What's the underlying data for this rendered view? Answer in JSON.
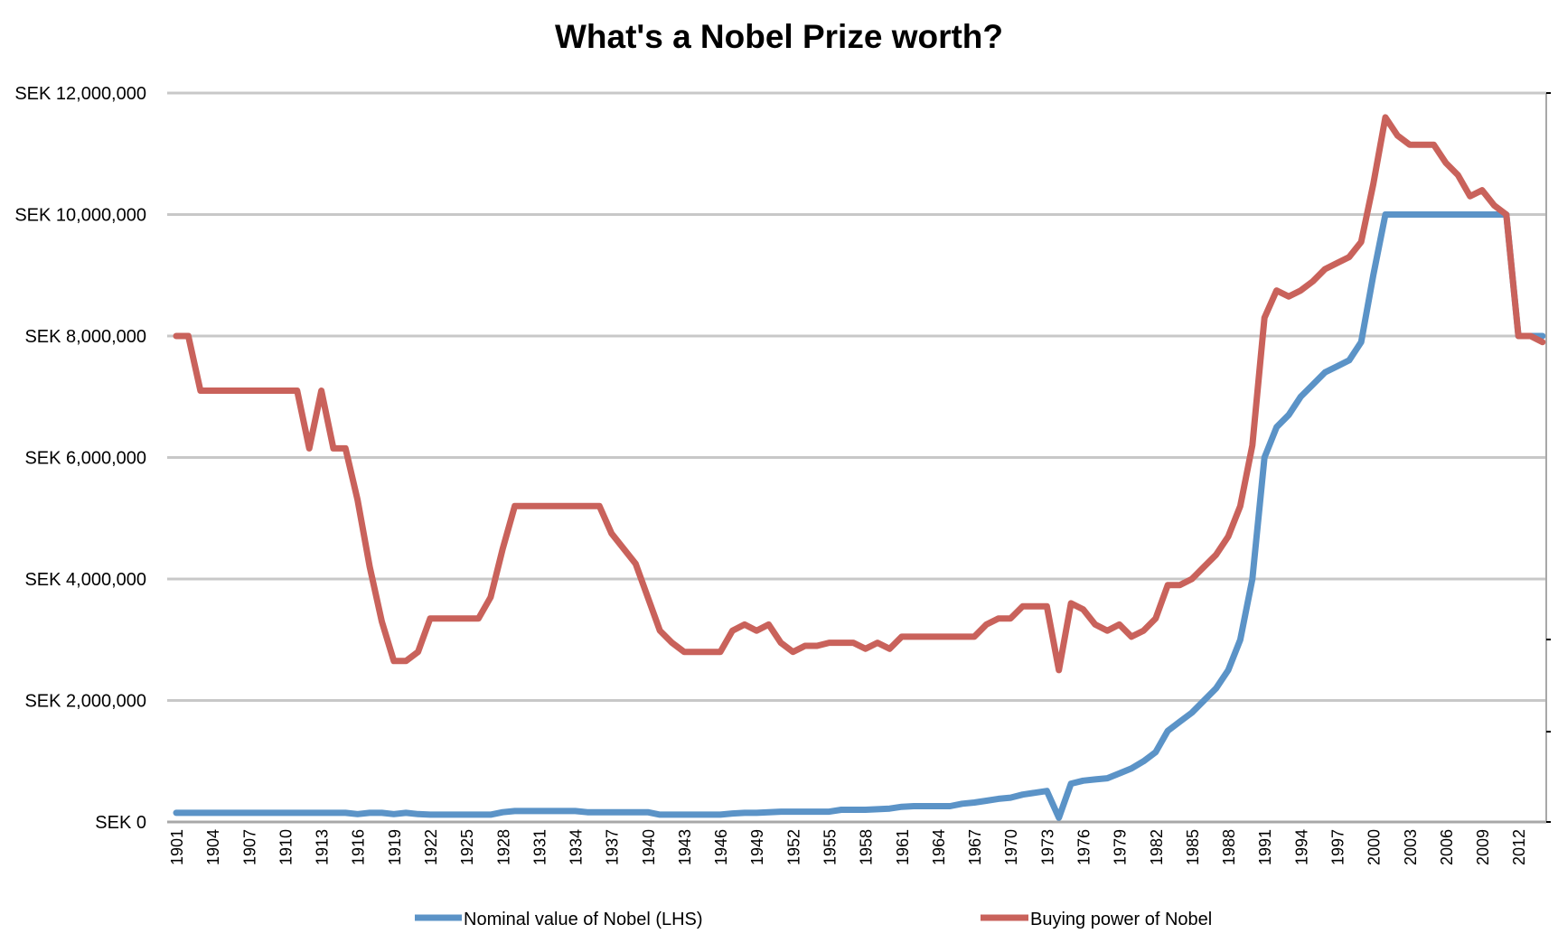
{
  "chart_data": {
    "type": "line",
    "title": "What's a Nobel Prize worth?",
    "xlabel": "",
    "ylabel": "",
    "x_start": 1901,
    "x_end": 2014,
    "x_tick_labels": [
      "1901",
      "1904",
      "1907",
      "1910",
      "1913",
      "1916",
      "1919",
      "1922",
      "1925",
      "1928",
      "1931",
      "1934",
      "1937",
      "1940",
      "1943",
      "1946",
      "1949",
      "1952",
      "1955",
      "1958",
      "1961",
      "1964",
      "1967",
      "1970",
      "1973",
      "1976",
      "1979",
      "1982",
      "1985",
      "1988",
      "1991",
      "1994",
      "1997",
      "2000",
      "2003",
      "2006",
      "2009",
      "2012"
    ],
    "y_tick_labels": [
      "SEK 0",
      "SEK 2,000,000",
      "SEK 4,000,000",
      "SEK 6,000,000",
      "SEK 8,000,000",
      "SEK 10,000,000",
      "SEK 12,000,000"
    ],
    "ylim_millions": [
      0,
      12
    ],
    "grid": true,
    "legend_position": "bottom",
    "series": [
      {
        "name": "Nominal value of Nobel (LHS)",
        "color": "#5b93c7",
        "values_millions": [
          0.15,
          0.15,
          0.15,
          0.15,
          0.15,
          0.15,
          0.15,
          0.15,
          0.15,
          0.15,
          0.15,
          0.15,
          0.15,
          0.15,
          0.15,
          0.13,
          0.15,
          0.15,
          0.13,
          0.15,
          0.13,
          0.12,
          0.12,
          0.12,
          0.12,
          0.12,
          0.12,
          0.16,
          0.18,
          0.18,
          0.18,
          0.18,
          0.18,
          0.18,
          0.16,
          0.16,
          0.16,
          0.16,
          0.16,
          0.16,
          0.12,
          0.12,
          0.12,
          0.12,
          0.12,
          0.12,
          0.14,
          0.15,
          0.15,
          0.16,
          0.17,
          0.17,
          0.17,
          0.17,
          0.17,
          0.2,
          0.2,
          0.2,
          0.21,
          0.22,
          0.25,
          0.26,
          0.26,
          0.26,
          0.26,
          0.3,
          0.32,
          0.35,
          0.38,
          0.4,
          0.45,
          0.48,
          0.51,
          0.07,
          0.63,
          0.68,
          0.7,
          0.72,
          0.8,
          0.88,
          1.0,
          1.15,
          1.5,
          1.65,
          1.8,
          2.0,
          2.2,
          2.5,
          3.0,
          4.0,
          6.0,
          6.5,
          6.7,
          7.0,
          7.2,
          7.4,
          7.5,
          7.6,
          7.9,
          9.0,
          10.0,
          10.0,
          10.0,
          10.0,
          10.0,
          10.0,
          10.0,
          10.0,
          10.0,
          10.0,
          10.0,
          8.0,
          8.0,
          8.0
        ]
      },
      {
        "name": "Buying power of Nobel",
        "color": "#c9625b",
        "values_millions": [
          8.0,
          8.0,
          7.1,
          7.1,
          7.1,
          7.1,
          7.1,
          7.1,
          7.1,
          7.1,
          7.1,
          6.15,
          7.1,
          6.15,
          6.15,
          5.3,
          4.2,
          3.3,
          2.65,
          2.65,
          2.8,
          3.35,
          3.35,
          3.35,
          3.35,
          3.35,
          3.7,
          4.5,
          5.2,
          5.2,
          5.2,
          5.2,
          5.2,
          5.2,
          5.2,
          5.2,
          4.75,
          4.5,
          4.25,
          3.7,
          3.15,
          2.95,
          2.8,
          2.8,
          2.8,
          2.8,
          3.15,
          3.25,
          3.15,
          3.25,
          2.95,
          2.8,
          2.9,
          2.9,
          2.95,
          2.95,
          2.95,
          2.85,
          2.95,
          2.85,
          3.05,
          3.05,
          3.05,
          3.05,
          3.05,
          3.05,
          3.05,
          3.25,
          3.35,
          3.35,
          3.55,
          3.55,
          3.55,
          2.5,
          3.6,
          3.5,
          3.25,
          3.15,
          3.25,
          3.05,
          3.15,
          3.35,
          3.9,
          3.9,
          4.0,
          4.2,
          4.4,
          4.7,
          5.2,
          6.2,
          8.3,
          8.75,
          8.65,
          8.75,
          8.9,
          9.1,
          9.2,
          9.3,
          9.55,
          10.5,
          11.6,
          11.3,
          11.15,
          11.15,
          11.15,
          10.85,
          10.65,
          10.3,
          10.4,
          10.15,
          10.0,
          8.0,
          8.0,
          7.9
        ]
      }
    ]
  }
}
